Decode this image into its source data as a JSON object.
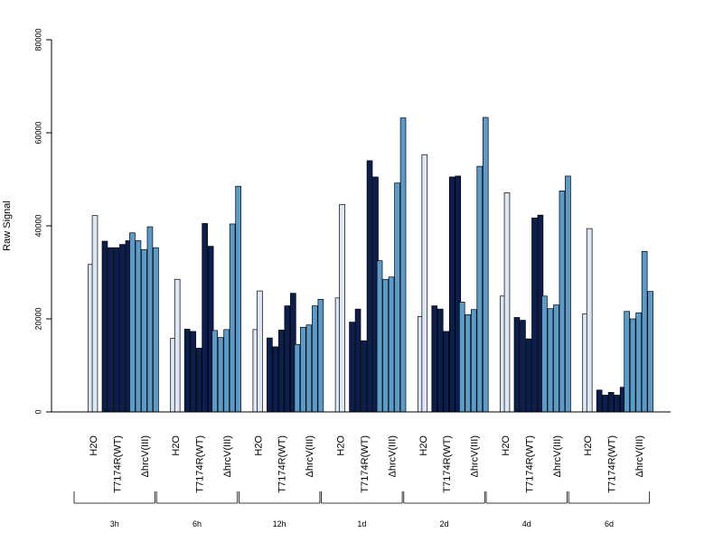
{
  "chart_data": {
    "type": "bar",
    "ylabel": "Raw Signal",
    "ylim": [
      0,
      80000
    ],
    "yticks": [
      0,
      20000,
      40000,
      60000,
      80000
    ],
    "grid": false,
    "legend": "none",
    "colors": {
      "H2O": "#dde6f4",
      "T7174R(WT)": "#0b1e4d",
      "ΔhrcV(III)": "#5b9bc9"
    },
    "groups": [
      {
        "label": "3h",
        "H2O": [
          31700,
          42200
        ],
        "T7174R(WT)": [
          36700,
          35300,
          35300,
          36000,
          36800
        ],
        "ΔhrcV(III)": [
          38500,
          36800,
          34900,
          39800,
          35300
        ]
      },
      {
        "label": "6h",
        "H2O": [
          15800,
          28500
        ],
        "T7174R(WT)": [
          17800,
          17300,
          13700,
          40500,
          35600
        ],
        "ΔhrcV(III)": [
          17500,
          16000,
          17700,
          40400,
          48500
        ]
      },
      {
        "label": "12h",
        "H2O": [
          17700,
          26000
        ],
        "T7174R(WT)": [
          15900,
          14000,
          17600,
          22800,
          25500
        ],
        "ΔhrcV(III)": [
          14500,
          18200,
          18700,
          22800,
          24200
        ]
      },
      {
        "label": "1d",
        "H2O": [
          24500,
          44600
        ],
        "T7174R(WT)": [
          19300,
          22100,
          15300,
          54000,
          50500
        ],
        "ΔhrcV(III)": [
          32500,
          28500,
          29000,
          49200,
          63200
        ]
      },
      {
        "label": "2d",
        "H2O": [
          20500,
          55300
        ],
        "T7174R(WT)": [
          22800,
          22100,
          17300,
          50500,
          50700
        ],
        "ΔhrcV(III)": [
          23600,
          20900,
          22000,
          52800,
          63300
        ]
      },
      {
        "label": "4d",
        "H2O": [
          24900,
          47100
        ],
        "T7174R(WT)": [
          20300,
          19700,
          15700,
          41700,
          42300
        ],
        "ΔhrcV(III)": [
          24900,
          22200,
          23000,
          47500,
          50700
        ]
      },
      {
        "label": "6d",
        "H2O": [
          21100,
          39400
        ],
        "T7174R(WT)": [
          4700,
          3600,
          4200,
          3600,
          5300
        ],
        "ΔhrcV(III)": [
          21600,
          20000,
          21300,
          34500,
          25900
        ]
      }
    ],
    "categories": [
      "H2O",
      "T7174R(WT)",
      "ΔhrcV(III)"
    ]
  }
}
